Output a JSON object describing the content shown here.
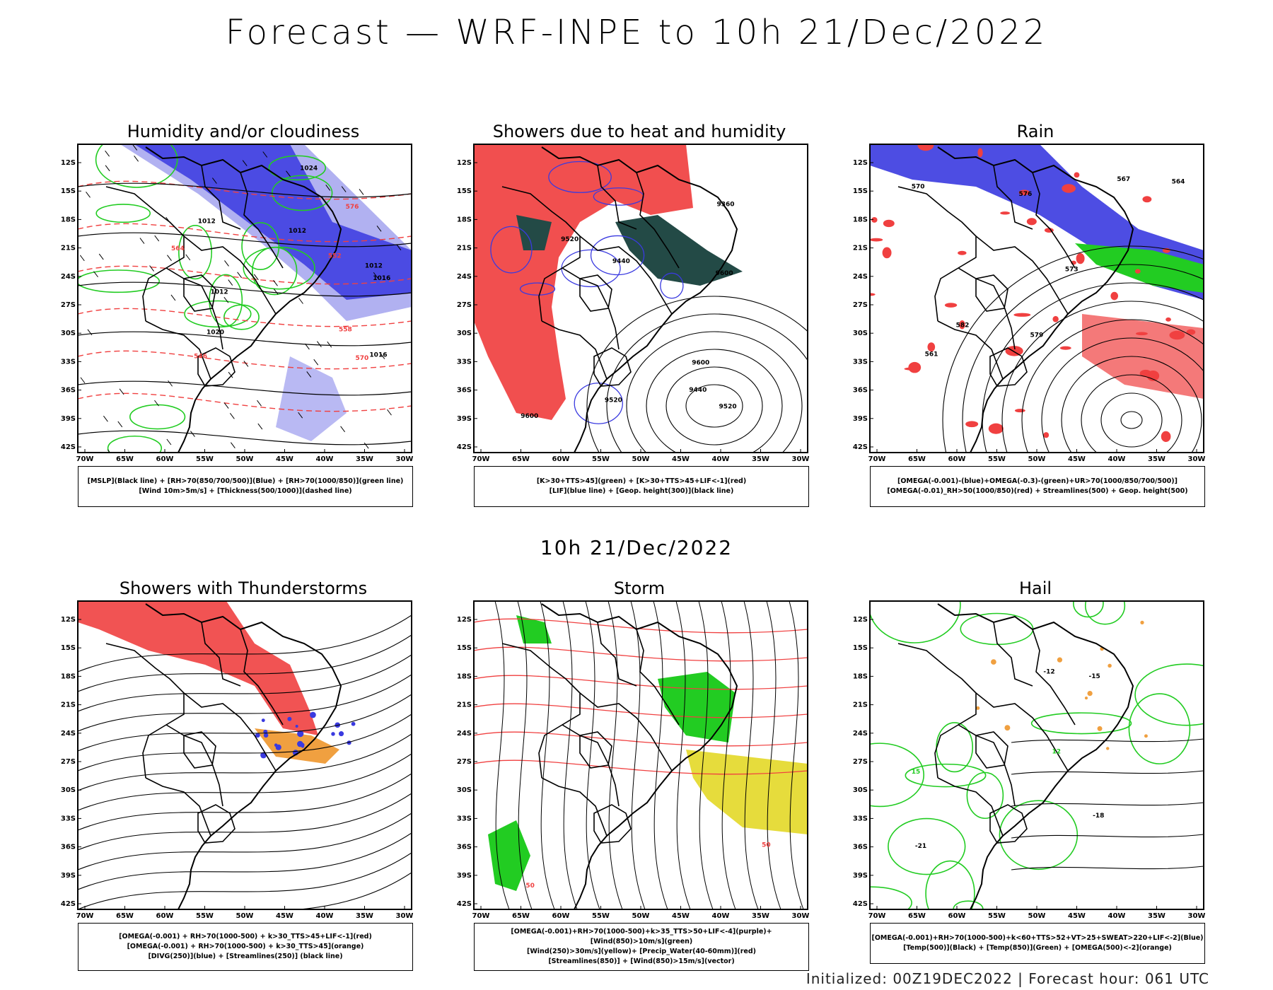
{
  "title": "Forecast — WRF-INPE to 10h 21/Dec/2022",
  "subtitle": "10h 21/Dec/2022",
  "footer": "Initialized: 00Z19DEC2022 | Forecast hour: 061 UTC",
  "lat_labels": [
    "12S",
    "15S",
    "18S",
    "21S",
    "24S",
    "27S",
    "30S",
    "33S",
    "36S",
    "39S",
    "42S"
  ],
  "lon_labels": [
    "70W",
    "65W",
    "60W",
    "55W",
    "50W",
    "45W",
    "40W",
    "35W",
    "30W"
  ],
  "colors": {
    "red": "#f04040",
    "blue": "#3a3ae0",
    "green": "#22cc22",
    "lightblue": "#a8a8f0",
    "darkteal": "#234a46",
    "orange": "#f0a040",
    "yellow": "#e6dc3c",
    "black": "#000000"
  },
  "panels": [
    {
      "title": "Humidity and/or cloudiness",
      "legend": [
        "[MSLP](Black line) + [RH>70(850/700/500)](Blue) + [RH>70(1000/850)](green line)",
        "[Wind 10m>5m/s] + [Thickness(500/1000)](dashed line)"
      ],
      "labels": [
        "1012",
        "1012",
        "1012",
        "1016",
        "1012",
        "1016",
        "1020",
        "1024",
        "570",
        "576",
        "564",
        "558",
        "552",
        "546"
      ]
    },
    {
      "title": "Showers due to heat and humidity",
      "legend": [
        "[K>30+TTS>45](green) + [K>30+TTS>45+LIF<-1](red)",
        "[LIF](blue line) + [Geop. height(300)](black line)"
      ],
      "labels": [
        "9600",
        "9600",
        "9600",
        "9520",
        "9520",
        "9520",
        "9440",
        "9440",
        "9360"
      ]
    },
    {
      "title": "Rain",
      "legend": [
        "[OMEGA(-0.001)-(blue)+OMEGA(-0.3)-(green)+UR>70(1000/850/700/500)]",
        "[OMEGA(-0.01)_RH>50(1000/850)(red) + Streamlines(500) + Geop. height(500)"
      ],
      "labels": [
        "582",
        "576",
        "579",
        "573",
        "570",
        "567",
        "564",
        "561"
      ]
    },
    {
      "title": "Showers with Thunderstorms",
      "legend": [
        "[OMEGA(-0.001) + RH>70(1000-500) + k>30_TTS>45+LIF<-1](red)",
        "[OMEGA(-0.001) + RH>70(1000-500) + k>30_TTS>45](orange)",
        "[DIVG(250)](blue) + [Streamlines(250)] (black line)"
      ],
      "labels": []
    },
    {
      "title": "Storm",
      "legend": [
        "[OMEGA(-0.001)+RH>70(1000-500)+k>35_TTS>50+LIF<-4](purple)+[Wind(850)>10m/s](green)",
        "[Wind(250)>30m/s](yellow)+ [Precip_Water(40-60mm)](red)",
        "[Streamlines(850)] + [Wind(850)>15m/s](vector)"
      ],
      "labels": [
        "50",
        "50"
      ]
    },
    {
      "title": "Hail",
      "legend": [
        "[OMEGA(-0.001)+RH>70(1000-500)+k<60+TTS>52+VT>25+SWEAT>220+LIF<-2](Blue)",
        "[Temp(500)](Black) + [Temp(850)](Green) + [OMEGA(500)<-2](orange)"
      ],
      "labels": [
        "-12",
        "-15",
        "-18",
        "-21",
        "12",
        "15"
      ]
    }
  ]
}
